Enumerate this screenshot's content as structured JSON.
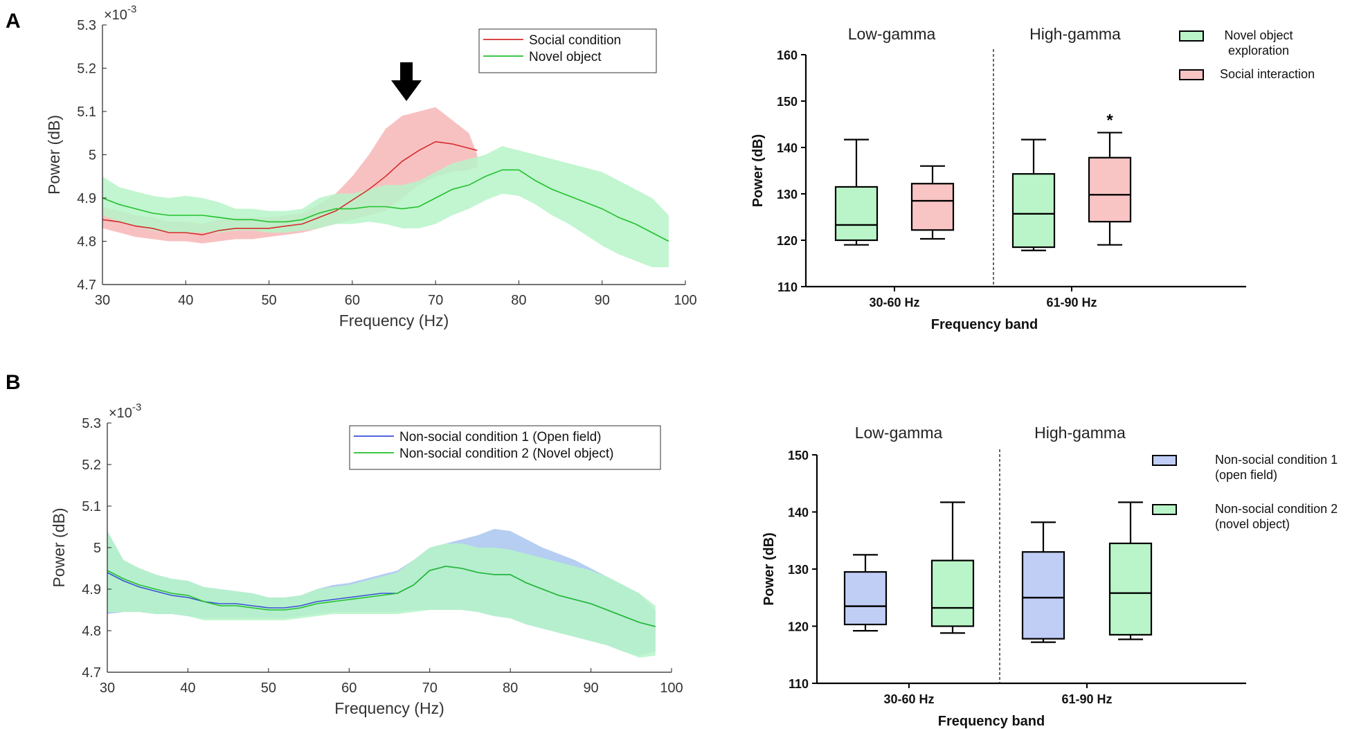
{
  "panels": {
    "A": {
      "label": "A",
      "spectrum": {
        "type": "line",
        "xlabel": "Frequency (Hz)",
        "ylabel": "Power (dB)",
        "scale_note": "×10",
        "scale_exp": "-3",
        "xlim": [
          30,
          100
        ],
        "ylim": [
          4.7,
          5.3
        ],
        "xticks": [
          "30",
          "40",
          "50",
          "60",
          "70",
          "80",
          "90",
          "100"
        ],
        "yticks": [
          "4.7",
          "4.8",
          "4.9",
          "5",
          "5.1",
          "5.2",
          "5.3"
        ],
        "legend": [
          "Social condition",
          "Novel object"
        ],
        "annotation": "arrow at 66.5 Hz",
        "arrow_x": 66.5,
        "series": [
          {
            "name": "Social condition",
            "color": "#d62b2b",
            "band_color": "#f7b6b6",
            "x": [
              30,
              32,
              34,
              36,
              38,
              40,
              42,
              44,
              46,
              48,
              50,
              52,
              54,
              56,
              58,
              60,
              62,
              64,
              66,
              68,
              70,
              72,
              74,
              75
            ],
            "mean": [
              4.85,
              4.845,
              4.835,
              4.83,
              4.82,
              4.82,
              4.815,
              4.825,
              4.83,
              4.83,
              4.83,
              4.835,
              4.84,
              4.855,
              4.87,
              4.895,
              4.92,
              4.95,
              4.985,
              5.01,
              5.03,
              5.025,
              5.015,
              5.01
            ],
            "upper": [
              4.88,
              4.87,
              4.86,
              4.855,
              4.845,
              4.845,
              4.84,
              4.85,
              4.855,
              4.855,
              4.855,
              4.86,
              4.865,
              4.885,
              4.91,
              4.95,
              5.0,
              5.06,
              5.09,
              5.1,
              5.11,
              5.08,
              5.05,
              5.0
            ],
            "lower": [
              4.83,
              4.82,
              4.81,
              4.805,
              4.8,
              4.8,
              4.795,
              4.8,
              4.805,
              4.805,
              4.81,
              4.815,
              4.82,
              4.83,
              4.84,
              4.85,
              4.86,
              4.87,
              4.9,
              4.93,
              4.95,
              4.96,
              4.965,
              4.97
            ]
          },
          {
            "name": "Novel object",
            "color": "#22c02c",
            "band_color": "#b6f5c8",
            "x": [
              30,
              32,
              34,
              36,
              38,
              40,
              42,
              44,
              46,
              48,
              50,
              52,
              54,
              56,
              58,
              60,
              62,
              64,
              66,
              68,
              70,
              72,
              74,
              76,
              78,
              80,
              82,
              84,
              86,
              88,
              90,
              92,
              94,
              96,
              98
            ],
            "mean": [
              4.9,
              4.885,
              4.875,
              4.865,
              4.86,
              4.86,
              4.86,
              4.855,
              4.85,
              4.85,
              4.845,
              4.845,
              4.85,
              4.865,
              4.875,
              4.875,
              4.88,
              4.88,
              4.875,
              4.88,
              4.9,
              4.92,
              4.93,
              4.95,
              4.965,
              4.965,
              4.94,
              4.92,
              4.905,
              4.89,
              4.875,
              4.855,
              4.84,
              4.82,
              4.8
            ],
            "upper": [
              4.95,
              4.925,
              4.915,
              4.905,
              4.9,
              4.905,
              4.9,
              4.89,
              4.875,
              4.875,
              4.87,
              4.87,
              4.875,
              4.9,
              4.91,
              4.91,
              4.92,
              4.93,
              4.93,
              4.94,
              4.96,
              4.98,
              4.99,
              5.0,
              5.02,
              5.01,
              5.0,
              4.99,
              4.98,
              4.97,
              4.96,
              4.94,
              4.92,
              4.9,
              4.86
            ],
            "lower": [
              4.86,
              4.845,
              4.835,
              4.825,
              4.82,
              4.82,
              4.82,
              4.82,
              4.825,
              4.825,
              4.82,
              4.82,
              4.825,
              4.83,
              4.84,
              4.84,
              4.845,
              4.84,
              4.83,
              4.83,
              4.84,
              4.86,
              4.875,
              4.895,
              4.91,
              4.905,
              4.885,
              4.86,
              4.84,
              4.815,
              4.79,
              4.77,
              4.755,
              4.74,
              4.74
            ]
          }
        ]
      },
      "boxplot": {
        "type": "box",
        "ylabel": "Power (dB)",
        "xlabel": "Frequency band",
        "ylim": [
          110,
          160
        ],
        "yticks": [
          "110",
          "120",
          "130",
          "140",
          "150",
          "160"
        ],
        "group_titles": [
          "Low-gamma",
          "High-gamma"
        ],
        "categories": [
          "30-60 Hz",
          "61-90 Hz"
        ],
        "legend": [
          "Novel object exploration",
          "Social interaction"
        ],
        "legend_lines": [
          [
            "Novel object",
            "exploration"
          ],
          [
            "Social interaction"
          ]
        ],
        "significance": "*",
        "series": [
          {
            "name": "Novel object exploration",
            "color": "#b9f5c8",
            "boxes": [
              {
                "min": 119,
                "q1": 120,
                "median": 123.3,
                "q3": 131.5,
                "max": 141.7
              },
              {
                "min": 117.8,
                "q1": 118.5,
                "median": 125.7,
                "q3": 134.3,
                "max": 141.7
              }
            ]
          },
          {
            "name": "Social interaction",
            "color": "#f8c4c4",
            "boxes": [
              {
                "min": 120.3,
                "q1": 122.2,
                "median": 128.5,
                "q3": 132.2,
                "max": 136
              },
              {
                "min": 119,
                "q1": 124,
                "median": 129.8,
                "q3": 137.8,
                "max": 143.2
              }
            ]
          }
        ]
      }
    },
    "B": {
      "label": "B",
      "spectrum": {
        "type": "line",
        "xlabel": "Frequency (Hz)",
        "ylabel": "Power (dB)",
        "scale_note": "×10",
        "scale_exp": "-3",
        "xlim": [
          30,
          100
        ],
        "ylim": [
          4.7,
          5.3
        ],
        "xticks": [
          "30",
          "40",
          "50",
          "60",
          "70",
          "80",
          "90",
          "100"
        ],
        "yticks": [
          "4.7",
          "4.8",
          "4.9",
          "5",
          "5.1",
          "5.2",
          "5.3"
        ],
        "legend": [
          "Non-social condition 1 (Open field)",
          "Non-social condition 2 (Novel object)"
        ],
        "series": [
          {
            "name": "Non-social condition 1 (Open field)",
            "color": "#3a50d6",
            "band_color": "#a8c6ee",
            "x": [
              30,
              32,
              34,
              36,
              38,
              40,
              42,
              44,
              46,
              48,
              50,
              52,
              54,
              56,
              58,
              60,
              62,
              64,
              66,
              68,
              70,
              72,
              74,
              76,
              78,
              80,
              82,
              84,
              86,
              88,
              90,
              92,
              94,
              96,
              98
            ],
            "mean": [
              4.94,
              4.92,
              4.905,
              4.895,
              4.885,
              4.88,
              4.87,
              4.865,
              4.865,
              4.86,
              4.855,
              4.855,
              4.86,
              4.87,
              4.875,
              4.88,
              4.885,
              4.89,
              4.89,
              4.91,
              4.945,
              4.955,
              4.95,
              4.94,
              4.935,
              4.935,
              4.915,
              4.9,
              4.885,
              4.875,
              4.865,
              4.85,
              4.835,
              4.82,
              4.81
            ],
            "upper": [
              5.04,
              4.97,
              4.95,
              4.935,
              4.925,
              4.92,
              4.905,
              4.9,
              4.895,
              4.89,
              4.88,
              4.88,
              4.885,
              4.9,
              4.91,
              4.915,
              4.925,
              4.935,
              4.945,
              4.97,
              5.0,
              5.01,
              5.02,
              5.03,
              5.045,
              5.04,
              5.02,
              5.0,
              4.985,
              4.97,
              4.95,
              4.93,
              4.91,
              4.89,
              4.85
            ],
            "lower": [
              4.84,
              4.845,
              4.845,
              4.84,
              4.84,
              4.835,
              4.83,
              4.83,
              4.83,
              4.83,
              4.83,
              4.83,
              4.835,
              4.84,
              4.845,
              4.845,
              4.845,
              4.845,
              4.845,
              4.85,
              4.85,
              4.85,
              4.85,
              4.845,
              4.835,
              4.83,
              4.815,
              4.805,
              4.795,
              4.785,
              4.775,
              4.765,
              4.75,
              4.74,
              4.75
            ]
          },
          {
            "name": "Non-social condition 2 (Novel object)",
            "color": "#22c02c",
            "band_color": "#b6f5c8",
            "x": [
              30,
              32,
              34,
              36,
              38,
              40,
              42,
              44,
              46,
              48,
              50,
              52,
              54,
              56,
              58,
              60,
              62,
              64,
              66,
              68,
              70,
              72,
              74,
              76,
              78,
              80,
              82,
              84,
              86,
              88,
              90,
              92,
              94,
              96,
              98
            ],
            "mean": [
              4.945,
              4.925,
              4.91,
              4.9,
              4.89,
              4.885,
              4.87,
              4.86,
              4.86,
              4.855,
              4.85,
              4.85,
              4.855,
              4.865,
              4.87,
              4.875,
              4.88,
              4.885,
              4.89,
              4.91,
              4.945,
              4.955,
              4.95,
              4.94,
              4.935,
              4.935,
              4.915,
              4.9,
              4.885,
              4.875,
              4.865,
              4.85,
              4.835,
              4.82,
              4.81
            ],
            "upper": [
              5.04,
              4.97,
              4.95,
              4.935,
              4.925,
              4.92,
              4.905,
              4.9,
              4.895,
              4.89,
              4.88,
              4.88,
              4.885,
              4.9,
              4.905,
              4.91,
              4.92,
              4.93,
              4.94,
              4.97,
              5.0,
              5.01,
              5.01,
              5.0,
              5.0,
              4.995,
              4.985,
              4.975,
              4.965,
              4.955,
              4.945,
              4.93,
              4.91,
              4.89,
              4.86
            ],
            "lower": [
              4.845,
              4.845,
              4.845,
              4.84,
              4.84,
              4.835,
              4.825,
              4.825,
              4.825,
              4.825,
              4.825,
              4.825,
              4.83,
              4.835,
              4.84,
              4.84,
              4.84,
              4.84,
              4.84,
              4.845,
              4.85,
              4.85,
              4.85,
              4.845,
              4.835,
              4.83,
              4.815,
              4.805,
              4.795,
              4.785,
              4.775,
              4.765,
              4.75,
              4.735,
              4.74
            ]
          }
        ]
      },
      "boxplot": {
        "type": "box",
        "ylabel": "Power (dB)",
        "xlabel": "Frequency band",
        "ylim": [
          110,
          150
        ],
        "yticks": [
          "110",
          "120",
          "130",
          "140",
          "150"
        ],
        "group_titles": [
          "Low-gamma",
          "High-gamma"
        ],
        "categories": [
          "30-60 Hz",
          "61-90 Hz"
        ],
        "legend": [
          "Non-social condition 1 (open field)",
          "Non-social condition 2 (novel object)"
        ],
        "legend_lines": [
          [
            "Non-social condition 1",
            "(open field)"
          ],
          [
            "Non-social condition 2",
            "(novel object)"
          ]
        ],
        "significance": "",
        "series": [
          {
            "name": "Non-social condition 1 (open field)",
            "color": "#c0cdf5",
            "boxes": [
              {
                "min": 119.2,
                "q1": 120.3,
                "median": 123.5,
                "q3": 129.5,
                "max": 132.5
              },
              {
                "min": 117.2,
                "q1": 117.8,
                "median": 125,
                "q3": 133,
                "max": 138.2
              }
            ]
          },
          {
            "name": "Non-social condition 2 (novel object)",
            "color": "#b9f5c8",
            "boxes": [
              {
                "min": 118.8,
                "q1": 120,
                "median": 123.2,
                "q3": 131.5,
                "max": 141.7
              },
              {
                "min": 117.7,
                "q1": 118.5,
                "median": 125.8,
                "q3": 134.5,
                "max": 141.7
              }
            ]
          }
        ]
      }
    }
  },
  "chart_data": [
    {
      "type": "line",
      "title": "A",
      "xlabel": "Frequency (Hz)",
      "ylabel": "Power (dB) ×10^-3",
      "xlim": [
        30,
        100
      ],
      "ylim": [
        4.7,
        5.3
      ],
      "series": [
        {
          "name": "Social condition",
          "x_range": [
            30,
            75
          ],
          "peak": {
            "x": 70,
            "y": 5.03
          }
        },
        {
          "name": "Novel object",
          "x_range": [
            30,
            98
          ],
          "peak": {
            "x": 78,
            "y": 4.965
          }
        }
      ]
    },
    {
      "type": "box",
      "title": "A",
      "xlabel": "Frequency band",
      "ylabel": "Power (dB)",
      "categories": [
        "30-60 Hz",
        "61-90 Hz"
      ],
      "series": [
        {
          "name": "Novel object exploration",
          "medians": [
            123.3,
            125.7
          ]
        },
        {
          "name": "Social interaction",
          "medians": [
            128.5,
            129.8
          ]
        }
      ]
    },
    {
      "type": "line",
      "title": "B",
      "xlabel": "Frequency (Hz)",
      "ylabel": "Power (dB) ×10^-3",
      "xlim": [
        30,
        100
      ],
      "ylim": [
        4.7,
        5.3
      ],
      "series": [
        {
          "name": "Non-social condition 1 (Open field)",
          "x_range": [
            30,
            98
          ]
        },
        {
          "name": "Non-social condition 2 (Novel object)",
          "x_range": [
            30,
            98
          ]
        }
      ]
    },
    {
      "type": "box",
      "title": "B",
      "xlabel": "Frequency band",
      "ylabel": "Power (dB)",
      "categories": [
        "30-60 Hz",
        "61-90 Hz"
      ],
      "series": [
        {
          "name": "Non-social condition 1 (open field)",
          "medians": [
            123.5,
            125
          ]
        },
        {
          "name": "Non-social condition 2 (novel object)",
          "medians": [
            123.2,
            125.8
          ]
        }
      ]
    }
  ]
}
